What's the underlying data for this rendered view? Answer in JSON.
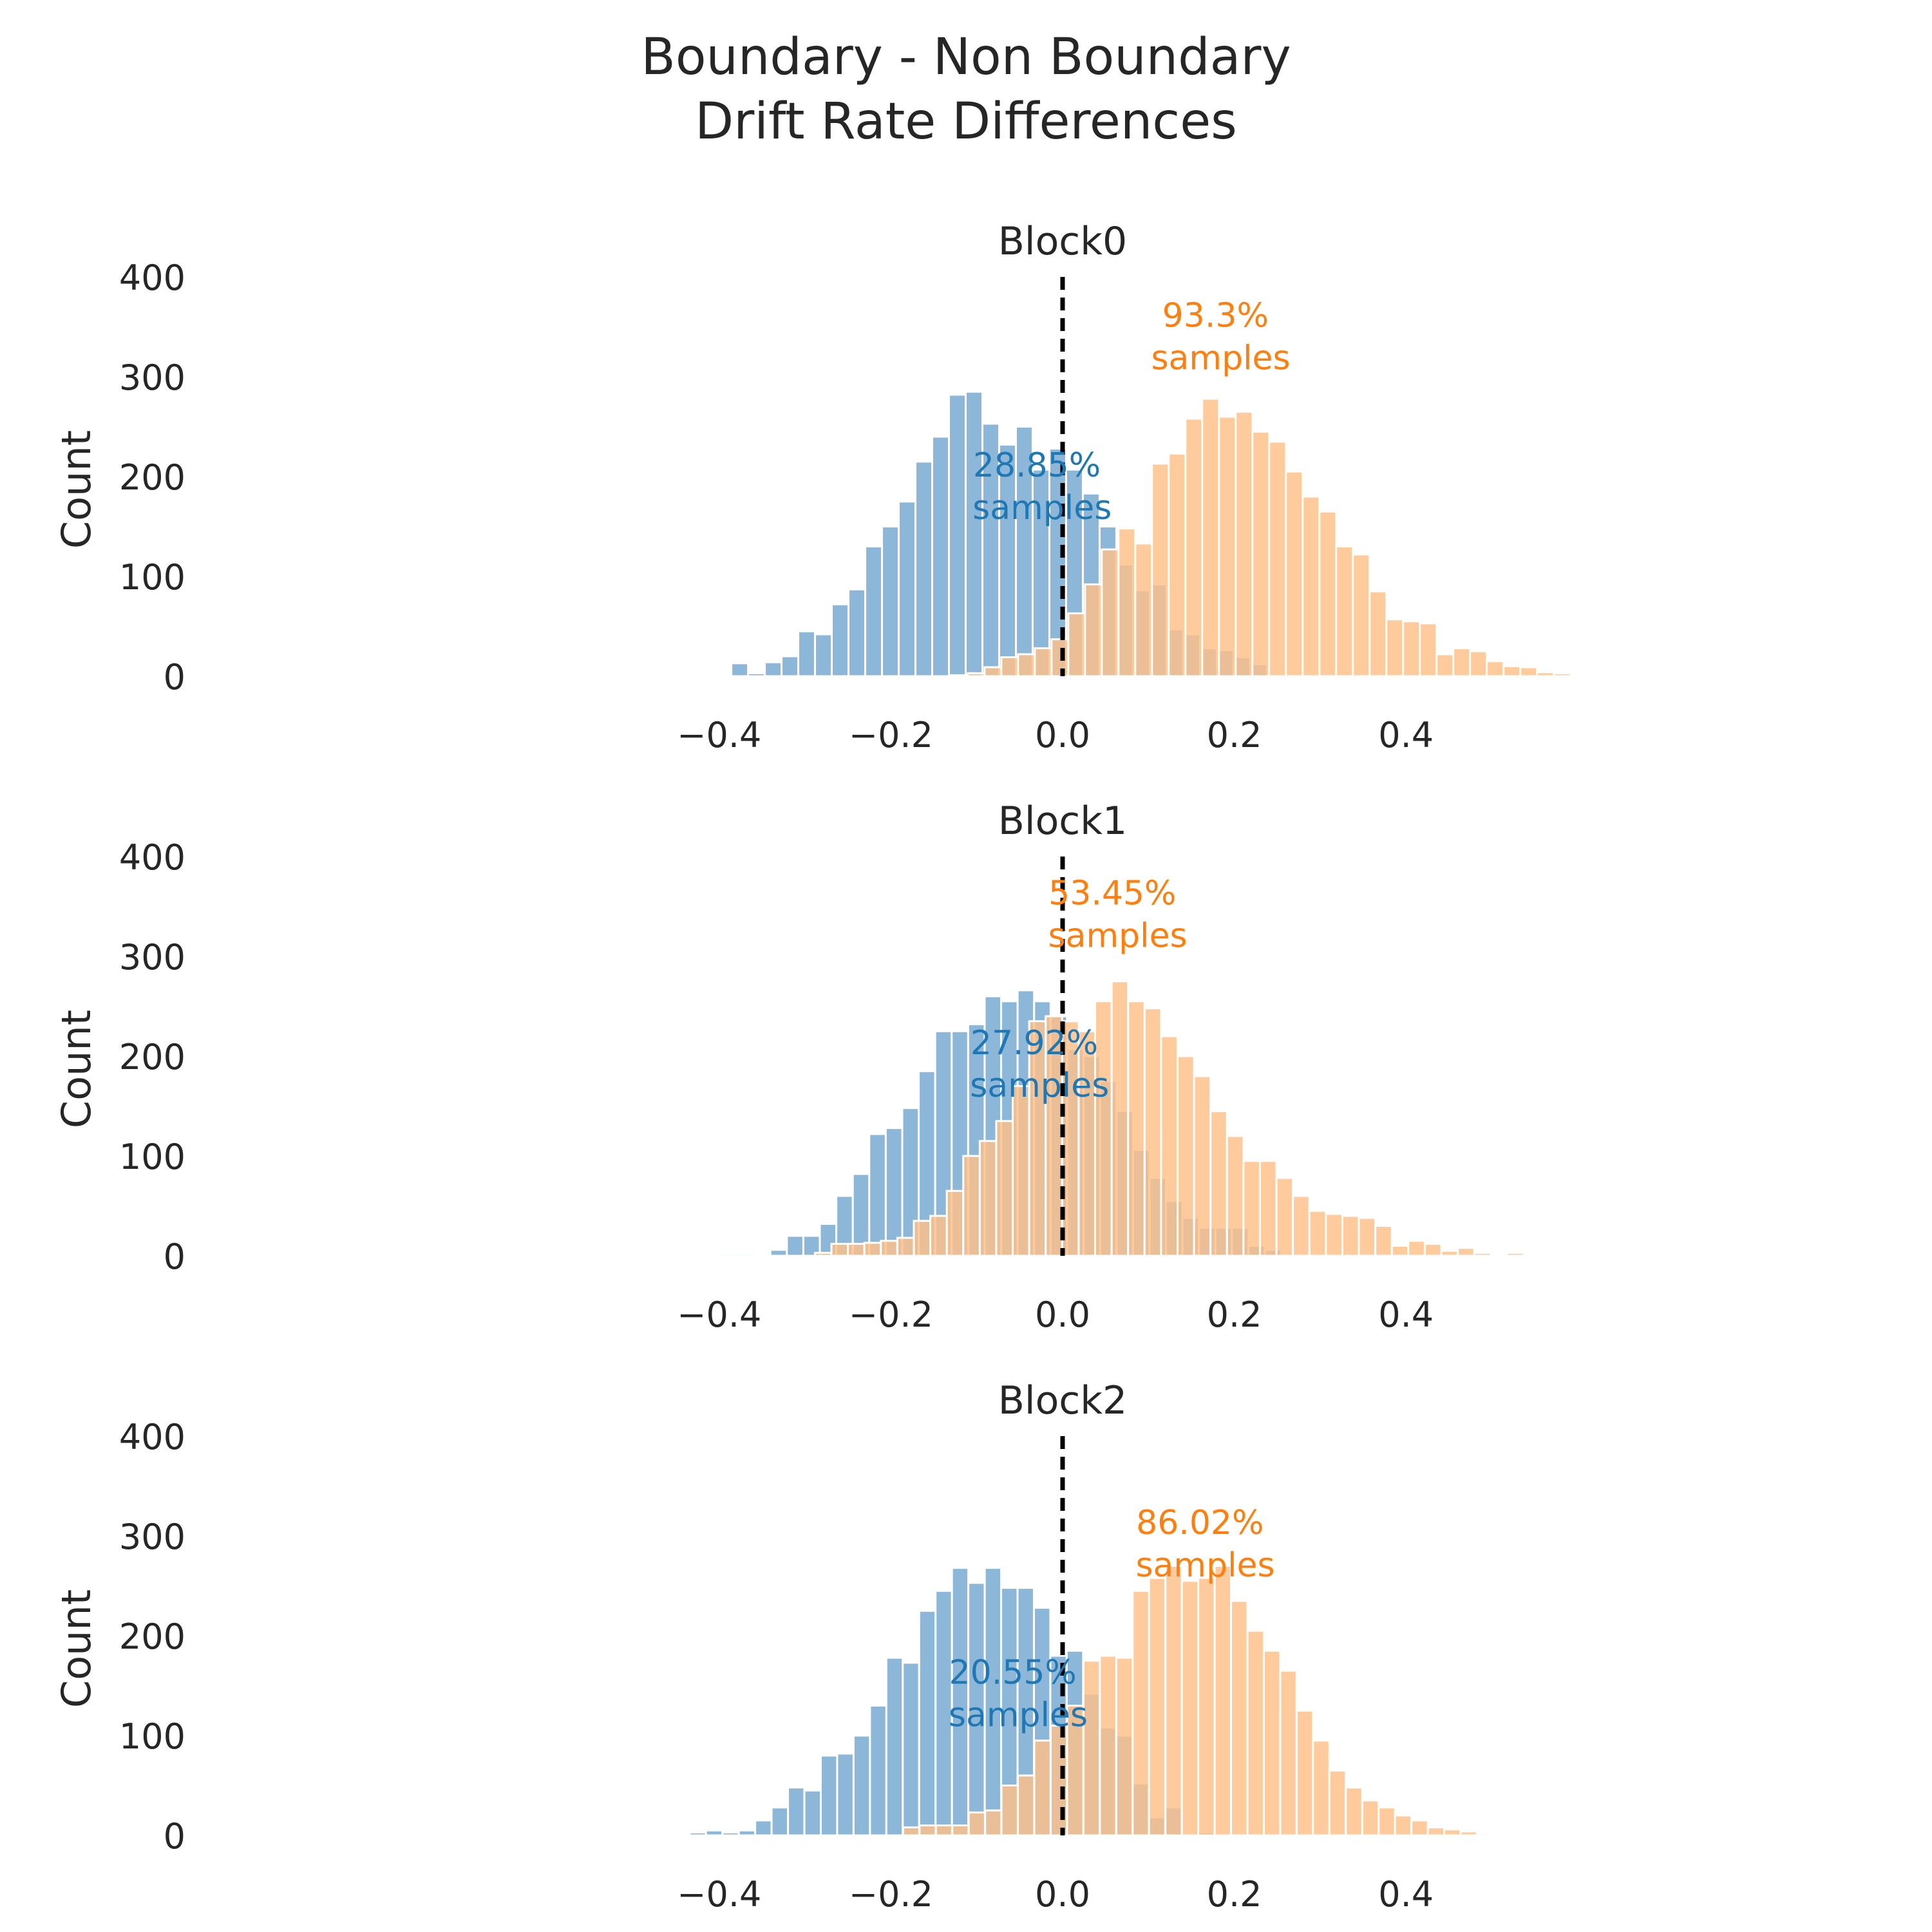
{
  "figure": {
    "title_line1": "Boundary - Non Boundary",
    "title_line2": "Drift Rate Differences"
  },
  "colors": {
    "series_a": "#1f77b4",
    "series_b": "#ff7f0e",
    "series_a_fill": "#8db7d8",
    "series_b_fill": "#ffbf88",
    "vline": "#000000",
    "text": "#262626"
  },
  "chart_data": [
    {
      "type": "bar",
      "title": "Block0",
      "xlabel": "",
      "ylabel": "Count",
      "xlim": [
        -0.44,
        0.46
      ],
      "ylim": [
        0,
        400
      ],
      "xticks": [
        "−0.4",
        "−0.2",
        "0.0",
        "0.2",
        "0.4"
      ],
      "xtick_values": [
        -0.4,
        -0.2,
        0.0,
        0.2,
        0.4
      ],
      "yticks": [
        "0",
        "100",
        "200",
        "300",
        "400"
      ],
      "ytick_values": [
        0,
        100,
        200,
        300,
        400
      ],
      "vline_x": 0.0,
      "grid": false,
      "series": [
        {
          "bin_start": -0.3859,
          "bin_width": 0.0195,
          "values": [
            13,
            3,
            14,
            20,
            45,
            42,
            72,
            87,
            130,
            150,
            175,
            215,
            240,
            282,
            285,
            253,
            232,
            250,
            207,
            228,
            207,
            183,
            150,
            112,
            86,
            92,
            47,
            42,
            28,
            26,
            19,
            12
          ]
        },
        {
          "bin_start": -0.1299,
          "bin_width": 0.0195,
          "values": [
            1,
            3,
            9,
            19,
            22,
            28,
            37,
            63,
            92,
            127,
            148,
            133,
            213,
            223,
            258,
            278,
            260,
            265,
            245,
            235,
            205,
            180,
            165,
            130,
            122,
            85,
            57,
            55,
            53,
            22,
            28,
            25,
            15,
            10,
            9,
            4,
            3
          ]
        }
      ],
      "annotations": [
        {
          "text": "28.85%\n samples",
          "x": -0.03,
          "y": 200,
          "series": 0
        },
        {
          "text": "93.3%\n samples",
          "x": 0.178,
          "y": 350,
          "series": 1
        }
      ]
    },
    {
      "type": "bar",
      "title": "Block1",
      "xlabel": "",
      "ylabel": "Count",
      "xlim": [
        -0.44,
        0.46
      ],
      "ylim": [
        0,
        400
      ],
      "xticks": [
        "−0.4",
        "−0.2",
        "0.0",
        "0.2",
        "0.4"
      ],
      "xtick_values": [
        -0.4,
        -0.2,
        0.0,
        0.2,
        0.4
      ],
      "yticks": [
        "0",
        "100",
        "200",
        "300",
        "400"
      ],
      "ytick_values": [
        0,
        100,
        200,
        300,
        400
      ],
      "vline_x": 0.0,
      "grid": false,
      "series": [
        {
          "bin_start": -0.398,
          "bin_width": 0.0192,
          "values": [
            2,
            2,
            0,
            6,
            20,
            20,
            32,
            60,
            82,
            122,
            128,
            148,
            185,
            225,
            225,
            232,
            260,
            255,
            266,
            255,
            240,
            207,
            200,
            175,
            145,
            106,
            78,
            55,
            38,
            28,
            28,
            28,
            10,
            6
          ]
        },
        {
          "bin_start": -0.2885,
          "bin_width": 0.0192,
          "values": [
            3,
            12,
            12,
            13,
            15,
            18,
            35,
            40,
            65,
            100,
            115,
            135,
            170,
            235,
            240,
            235,
            225,
            255,
            275,
            255,
            248,
            220,
            200,
            180,
            145,
            120,
            95,
            95,
            78,
            60,
            45,
            42,
            40,
            38,
            30,
            10,
            15,
            12,
            5,
            8,
            3,
            1,
            3,
            1,
            1,
            1
          ]
        }
      ],
      "annotations": [
        {
          "text": "27.92%\n samples",
          "x": -0.033,
          "y": 202,
          "series": 0
        },
        {
          "text": "53.45%\n samples",
          "x": 0.058,
          "y": 352,
          "series": 1
        }
      ]
    },
    {
      "type": "bar",
      "title": "Block2",
      "xlabel": "",
      "ylabel": "Count",
      "xlim": [
        -0.44,
        0.46
      ],
      "ylim": [
        0,
        400
      ],
      "xticks": [
        "−0.4",
        "−0.2",
        "0.0",
        "0.2",
        "0.4"
      ],
      "xtick_values": [
        -0.4,
        -0.2,
        0.0,
        0.2,
        0.4
      ],
      "yticks": [
        "0",
        "100",
        "200",
        "300",
        "400"
      ],
      "ytick_values": [
        0,
        100,
        200,
        300,
        400
      ],
      "vline_x": 0.0,
      "grid": false,
      "series": [
        {
          "bin_start": -0.4345,
          "bin_width": 0.0191,
          "values": [
            3,
            5,
            3,
            5,
            15,
            28,
            48,
            45,
            80,
            82,
            100,
            130,
            178,
            173,
            225,
            245,
            268,
            253,
            268,
            248,
            248,
            228,
            180,
            185,
            142,
            108,
            100,
            52,
            18,
            28,
            2,
            3
          ]
        },
        {
          "bin_start": -0.1858,
          "bin_width": 0.0191,
          "values": [
            8,
            10,
            10,
            10,
            23,
            25,
            50,
            60,
            95,
            110,
            130,
            175,
            180,
            178,
            245,
            258,
            270,
            255,
            258,
            270,
            235,
            205,
            185,
            165,
            125,
            95,
            65,
            48,
            35,
            28,
            20,
            15,
            8,
            6,
            4,
            2
          ]
        }
      ],
      "annotations": [
        {
          "text": "20.55%\n samples",
          "x": -0.058,
          "y": 152,
          "series": 0
        },
        {
          "text": "86.02%\n samples",
          "x": 0.16,
          "y": 302,
          "series": 1
        }
      ]
    }
  ]
}
